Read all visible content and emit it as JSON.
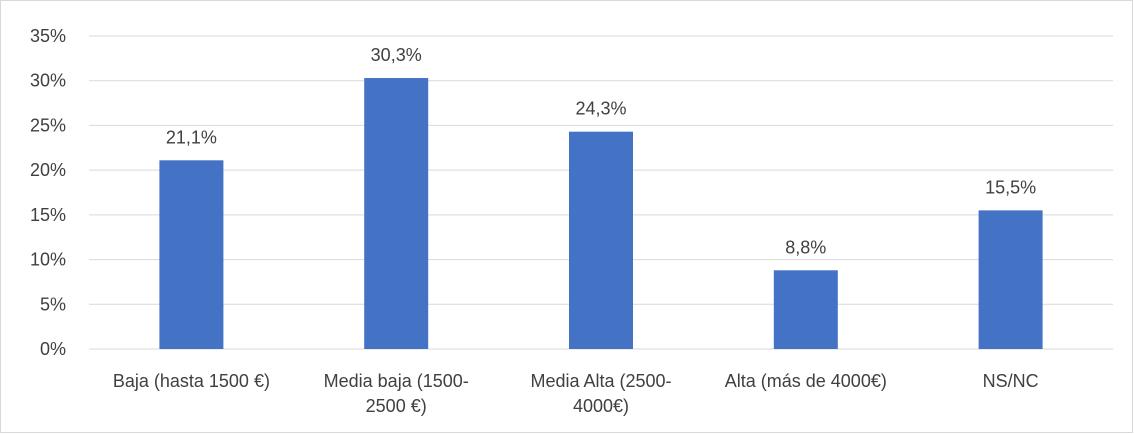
{
  "chart_data": {
    "type": "bar",
    "categories": [
      [
        "Baja (hasta 1500 €)"
      ],
      [
        "Media baja (1500-",
        "2500 €)"
      ],
      [
        "Media Alta (2500-",
        "4000€)"
      ],
      [
        "Alta (más de 4000€)"
      ],
      [
        "NS/NC"
      ]
    ],
    "values": [
      21.1,
      30.3,
      24.3,
      8.8,
      15.5
    ],
    "data_labels": [
      "21,1%",
      "30,3%",
      "24,3%",
      "8,8%",
      "15,5%"
    ],
    "ylim": [
      0,
      35
    ],
    "yticks": [
      0,
      5,
      10,
      15,
      20,
      25,
      30,
      35
    ],
    "ytick_labels": [
      "0%",
      "5%",
      "10%",
      "15%",
      "20%",
      "25%",
      "30%",
      "35%"
    ],
    "grid": true,
    "legend": "none",
    "bar_color": "#4472C4",
    "grid_color": "#d9d9d9"
  }
}
